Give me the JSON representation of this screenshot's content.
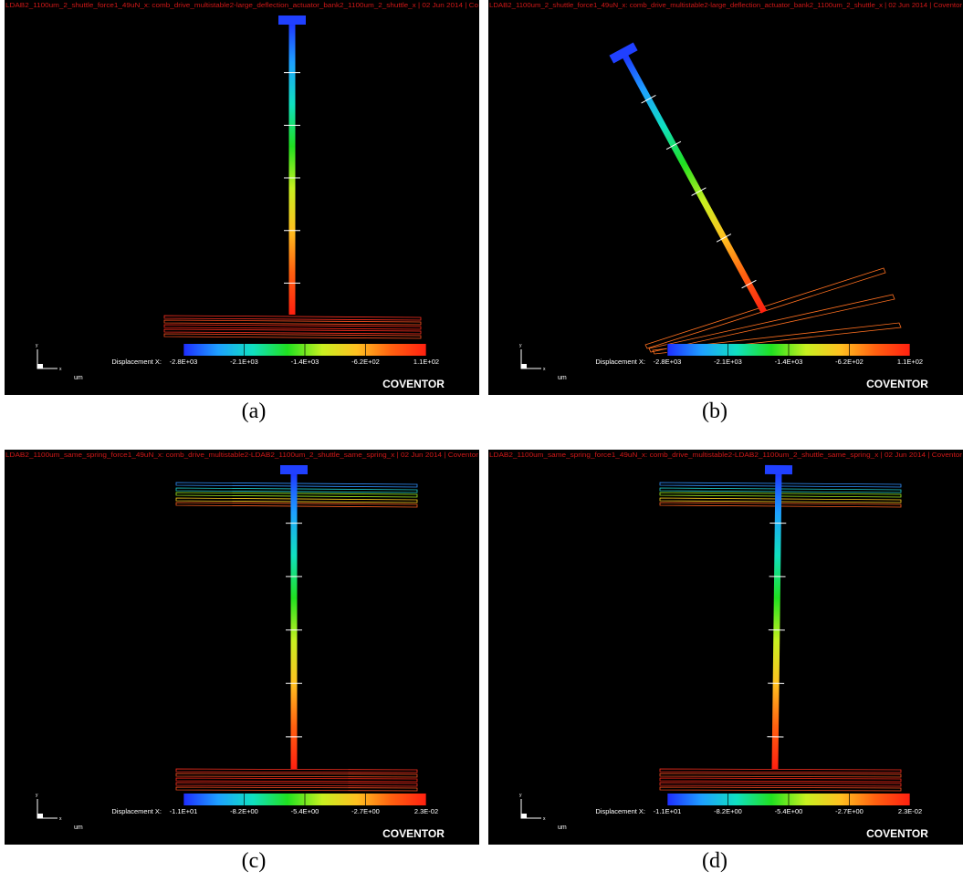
{
  "panels": [
    {
      "header": "LDAB2_1100um_2_shuttle_force1_49uN_x: comb_drive_multistable2-large_deflection_actuator_bank2_1100um_2_shuttle_x | 02 Jun 2014 | Co",
      "triad": {
        "y": "y",
        "x": "x"
      },
      "unit": "um",
      "colorbar_label": "Displacement X:",
      "colorbar_ticks": [
        "-2.8E+03",
        "-2.1E+03",
        "-1.4E+03",
        "-6.2E+02",
        "1.1E+02"
      ],
      "brand": "COVENTOR",
      "caption": "(a)"
    },
    {
      "header": "LDAB2_1100um_2_shuttle_force1_49uN_x: comb_drive_multistable2-large_deflection_actuator_bank2_1100um_2_shuttle_x | 02 Jun 2014 | Coventor",
      "triad": {
        "y": "y",
        "x": "x"
      },
      "unit": "um",
      "colorbar_label": "Displacement X:",
      "colorbar_ticks": [
        "-2.8E+03",
        "-2.1E+03",
        "-1.4E+03",
        "-6.2E+02",
        "1.1E+02"
      ],
      "brand": "COVENTOR",
      "caption": "(b)"
    },
    {
      "header": "LDAB2_1100um_same_spring_force1_49uN_x: comb_drive_multistable2-LDAB2_1100um_2_shuttle_same_spring_x | 02 Jun 2014 | Coventor",
      "triad": {
        "y": "y",
        "x": "x"
      },
      "unit": "um",
      "colorbar_label": "Displacement X:",
      "colorbar_ticks": [
        "-1.1E+01",
        "-8.2E+00",
        "-5.4E+00",
        "-2.7E+00",
        "2.3E-02"
      ],
      "brand": "COVENTOR",
      "caption": "(c)"
    },
    {
      "header": "LDAB2_1100um_same_spring_force1_49uN_x: comb_drive_multistable2-LDAB2_1100um_2_shuttle_same_spring_x | 02 Jun 2014 | Coventor",
      "triad": {
        "y": "y",
        "x": "x"
      },
      "unit": "um",
      "colorbar_label": "Displacement X:",
      "colorbar_ticks": [
        "-1.1E+01",
        "-8.2E+00",
        "-5.4E+00",
        "-2.7E+00",
        "2.3E-02"
      ],
      "brand": "COVENTOR",
      "caption": "(d)"
    }
  ]
}
